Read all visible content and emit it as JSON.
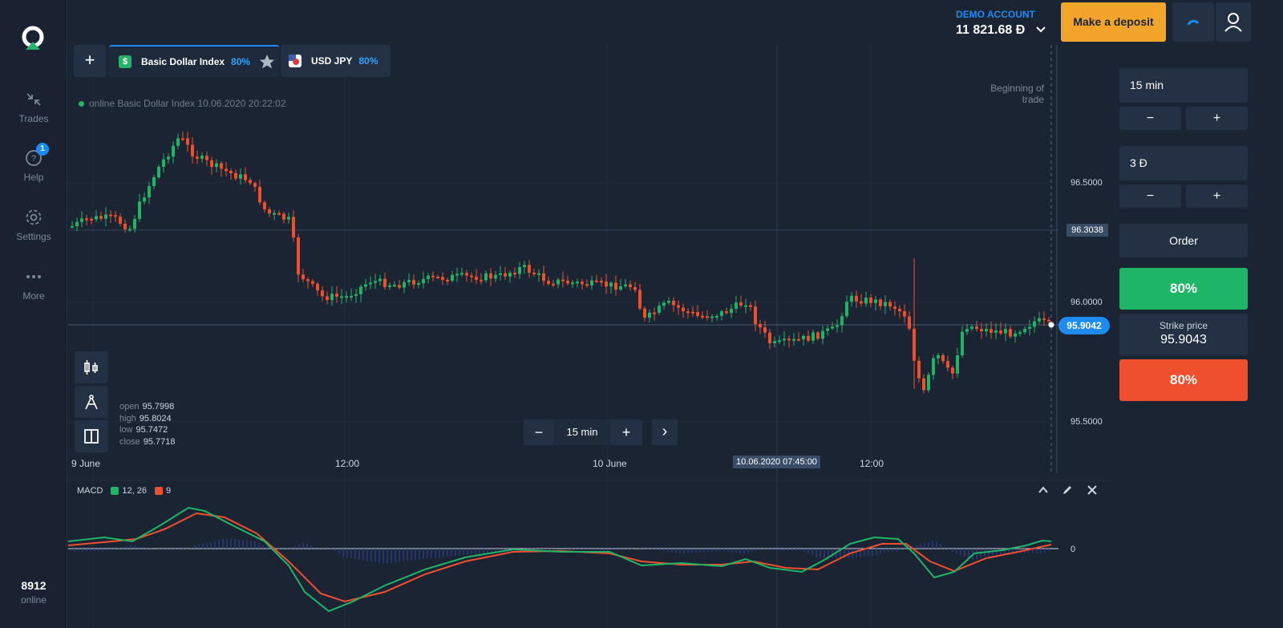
{
  "sidebar": {
    "items": [
      {
        "label": "Trades",
        "icon": "arrows-collapse-icon"
      },
      {
        "label": "Help",
        "icon": "question-bubble-icon",
        "badge": "1"
      },
      {
        "label": "Settings",
        "icon": "gear-icon"
      },
      {
        "label": "More",
        "icon": "dots-icon"
      }
    ],
    "online_count": "8912",
    "online_label": "online"
  },
  "tabs": {
    "add_label": "+",
    "items": [
      {
        "label": "Basic Dollar Index",
        "percent": "80%",
        "icon": "dollar-icon"
      },
      {
        "label": "USD JPY",
        "percent": "80%",
        "icon": "usd-jpy-flag-icon"
      }
    ]
  },
  "chart": {
    "status": "online Basic Dollar Index  10.06.2020 20:22:02",
    "beginning_label": "Beginning of trade",
    "price_ticks": [
      "96.5000",
      "96.0000",
      "95.5000"
    ],
    "highlight_price": "96.3038",
    "current_price": "95.9042",
    "time_ticks": [
      "9 June",
      "12:00",
      "10 June",
      "12:00"
    ],
    "highlight_time": "10.06.2020 07:45:00",
    "ohlc": {
      "open": "95.7998",
      "high": "95.8024",
      "low": "95.7472",
      "close": "95.7718"
    },
    "ohlc_labels": {
      "open": "open",
      "high": "high",
      "low": "low",
      "close": "close"
    },
    "timeframe": {
      "minus": "−",
      "value": "15 min",
      "plus": "+",
      "next": "›"
    },
    "colors": {
      "up": "#1fb567",
      "down": "#f04f2e",
      "accent": "#1e8bf0"
    }
  },
  "macd": {
    "label": "MACD",
    "fast_label": "12, 26",
    "signal_label": "9",
    "zero_label": "0"
  },
  "account": {
    "type": "DEMO ACCOUNT",
    "balance": "11 821.68 Đ",
    "deposit_label": "Make a deposit"
  },
  "trade_panel": {
    "duration": "15 min",
    "amount": "3 Đ",
    "minus": "−",
    "plus": "+",
    "order_label": "Order",
    "up_label": "80%",
    "strike_label": "Strike price",
    "strike_value": "95.9043",
    "down_label": "80%"
  }
}
